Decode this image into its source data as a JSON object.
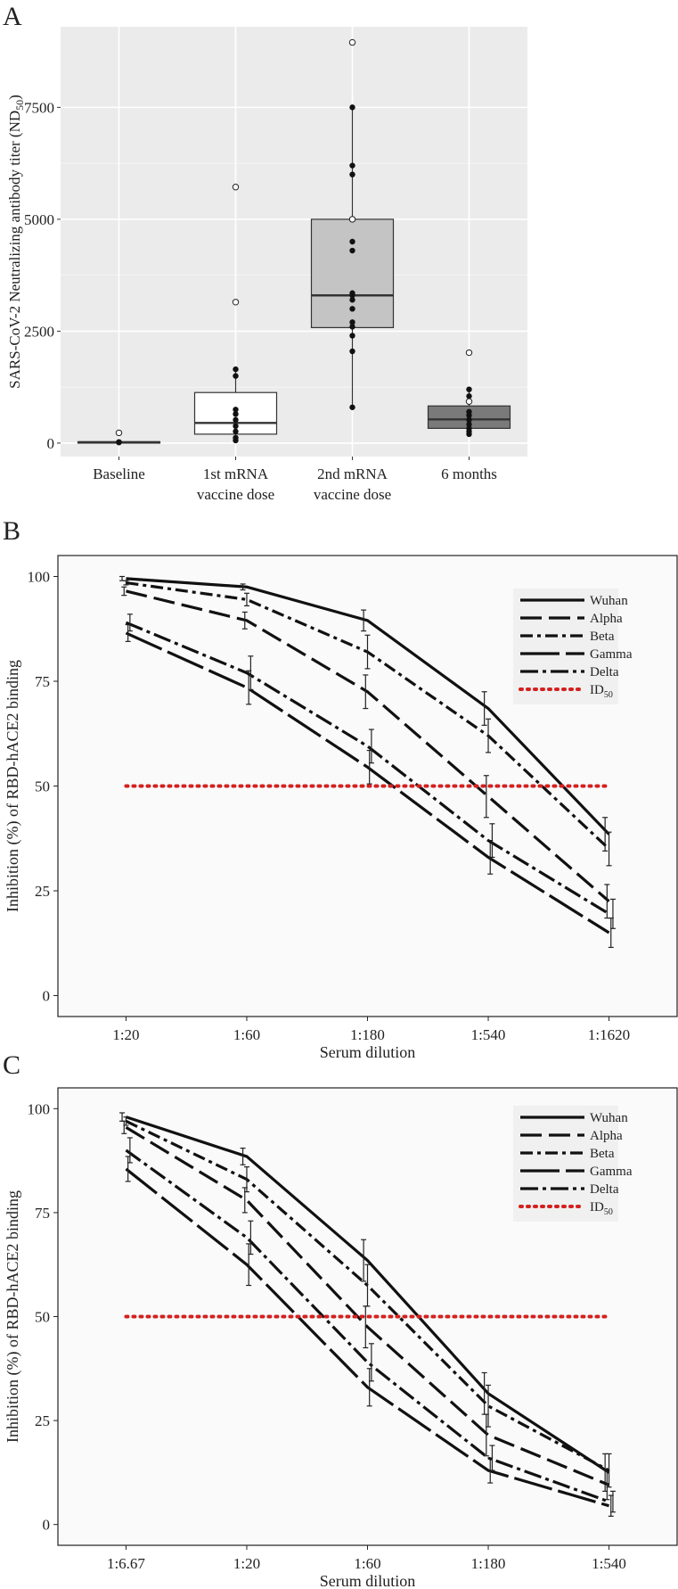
{
  "panels": {
    "a": "A",
    "b": "B",
    "c": "C"
  },
  "chart_data": [
    {
      "panel": "A",
      "type": "box",
      "ylabel": "SARS-CoV-2 Neutralizing antibody titer (ND50)",
      "ylim": [
        -300,
        9300
      ],
      "yticks": [
        0,
        2500,
        5000,
        7500
      ],
      "yticks_labels": [
        "0",
        "2500",
        "5000",
        "7500"
      ],
      "categories": [
        {
          "label": "Baseline",
          "label2": "",
          "box": {
            "q1": 10,
            "median": 20,
            "q3": 30,
            "whisker_low": 10,
            "whisker_high": 30
          },
          "points": [
            20,
            25,
            15
          ],
          "outliers": [
            230
          ]
        },
        {
          "label": "1st mRNA",
          "label2": "vaccine dose",
          "box": {
            "q1": 200,
            "median": 450,
            "q3": 1130,
            "whisker_low": 60,
            "whisker_high": 1650
          },
          "points": [
            60,
            120,
            260,
            380,
            520,
            650,
            750,
            1500,
            1650
          ],
          "outliers": [
            3150,
            5720
          ]
        },
        {
          "label": "2nd mRNA",
          "label2": "vaccine dose",
          "box": {
            "q1": 2580,
            "median": 3300,
            "q3": 5000,
            "whisker_low": 800,
            "whisker_high": 7500
          },
          "points": [
            800,
            2050,
            2400,
            2600,
            2700,
            3000,
            3200,
            3300,
            3350,
            4300,
            4500,
            6000,
            6200,
            7500
          ],
          "outliers": [
            5000,
            8950
          ]
        },
        {
          "label": "6 months",
          "label2": "",
          "box": {
            "q1": 330,
            "median": 530,
            "q3": 830,
            "whisker_low": 200,
            "whisker_high": 1200
          },
          "points": [
            200,
            260,
            330,
            420,
            520,
            620,
            700,
            1050,
            1200
          ],
          "outliers": [
            930,
            2020
          ]
        }
      ]
    },
    {
      "panel": "B",
      "type": "line",
      "xlabel": "Serum dilution",
      "ylabel": "Inhibition (%) of RBD-hACE2 binding",
      "categories": [
        "1:20",
        "1:60",
        "1:180",
        "1:540",
        "1:1620"
      ],
      "ylim": [
        -5,
        105
      ],
      "yticks": [
        0,
        25,
        50,
        75,
        100
      ],
      "yticks_labels": [
        "0",
        "25",
        "50",
        "75",
        "100"
      ],
      "id50": 50,
      "series": [
        {
          "name": "Wuhan",
          "values": [
            99.5,
            97.5,
            89.5,
            68.5,
            38.5
          ],
          "err": [
            0.5,
            0.7,
            2.5,
            4.0,
            4.0
          ]
        },
        {
          "name": "Alpha",
          "values": [
            96.5,
            89.5,
            72.5,
            47.5,
            22.5
          ],
          "err": [
            1.0,
            2.0,
            4.0,
            5.0,
            4.0
          ]
        },
        {
          "name": "Beta",
          "values": [
            98.5,
            94.5,
            82.0,
            62.0,
            35.0
          ],
          "err": [
            0.5,
            1.5,
            4.0,
            4.0,
            4.0
          ]
        },
        {
          "name": "Gamma",
          "values": [
            86.5,
            73.5,
            54.5,
            33.0,
            15.0
          ],
          "err": [
            2.0,
            4.0,
            4.0,
            4.0,
            3.5
          ]
        },
        {
          "name": "Delta",
          "values": [
            89.0,
            77.0,
            59.5,
            37.0,
            19.5
          ],
          "err": [
            2.0,
            4.0,
            4.0,
            4.0,
            3.5
          ]
        },
        {
          "name": "ID50",
          "values": [
            50,
            50,
            50,
            50,
            50
          ]
        }
      ]
    },
    {
      "panel": "C",
      "type": "line",
      "xlabel": "Serum dilution",
      "ylabel": "Inhibition (%) of RBD-hACE2 binding",
      "categories": [
        "1:6.67",
        "1:20",
        "1:60",
        "1:180",
        "1:540"
      ],
      "ylim": [
        -5,
        105
      ],
      "yticks": [
        0,
        25,
        50,
        75,
        100
      ],
      "yticks_labels": [
        "0",
        "25",
        "50",
        "75",
        "100"
      ],
      "id50": 50,
      "series": [
        {
          "name": "Wuhan",
          "values": [
            98.0,
            88.5,
            63.5,
            31.5,
            12.5
          ],
          "err": [
            1.0,
            2.0,
            5.0,
            5.0,
            4.5
          ]
        },
        {
          "name": "Alpha",
          "values": [
            95.5,
            78.0,
            47.5,
            21.5,
            9.5
          ],
          "err": [
            1.5,
            3.0,
            5.0,
            5.0,
            3.5
          ]
        },
        {
          "name": "Beta",
          "values": [
            97.0,
            83.0,
            57.5,
            28.5,
            13.0
          ],
          "err": [
            1.0,
            3.0,
            5.0,
            5.0,
            4.0
          ]
        },
        {
          "name": "Gamma",
          "values": [
            85.5,
            62.5,
            33.0,
            13.0,
            4.5
          ],
          "err": [
            3.0,
            5.0,
            4.5,
            3.0,
            2.5
          ]
        },
        {
          "name": "Delta",
          "values": [
            90.0,
            69.0,
            39.0,
            16.0,
            5.5
          ],
          "err": [
            3.0,
            4.0,
            4.5,
            3.0,
            2.5
          ]
        },
        {
          "name": "ID50",
          "values": [
            50,
            50,
            50,
            50,
            50
          ]
        }
      ]
    }
  ]
}
